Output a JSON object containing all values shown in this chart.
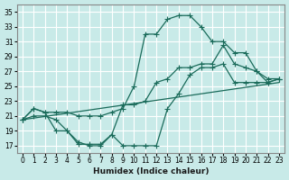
{
  "title": "",
  "xlabel": "Humidex (Indice chaleur)",
  "ylabel": "",
  "bg_color": "#c8eae8",
  "grid_color": "#ffffff",
  "line_color": "#1a6b5a",
  "xlim": [
    -0.5,
    23.5
  ],
  "ylim": [
    16,
    36
  ],
  "xticks": [
    0,
    1,
    2,
    3,
    4,
    5,
    6,
    7,
    8,
    9,
    10,
    11,
    12,
    13,
    14,
    15,
    16,
    17,
    18,
    19,
    20,
    21,
    22,
    23
  ],
  "yticks": [
    17,
    19,
    21,
    23,
    25,
    27,
    29,
    31,
    33,
    35
  ],
  "line1_x": [
    0,
    1,
    2,
    3,
    4,
    5,
    6,
    7,
    8,
    9,
    10,
    11,
    12,
    13,
    14,
    15,
    16,
    17,
    18,
    19,
    20,
    21,
    22,
    23
  ],
  "line1_y": [
    20.5,
    22.0,
    21.5,
    21.5,
    21.5,
    21.0,
    21.0,
    21.0,
    21.5,
    22.0,
    25.0,
    32.0,
    32.0,
    34.0,
    34.5,
    34.5,
    33.0,
    31.0,
    31.0,
    29.5,
    29.5,
    27.0,
    26.0,
    26.0
  ],
  "line2_x": [
    0,
    1,
    2,
    3,
    4,
    5,
    6,
    7,
    8,
    9,
    10,
    11,
    12,
    13,
    14,
    15,
    16,
    17,
    18,
    19,
    20,
    21,
    22,
    23
  ],
  "line2_y": [
    20.5,
    22.0,
    21.5,
    19.0,
    19.0,
    17.5,
    17.0,
    17.0,
    18.5,
    22.5,
    22.5,
    23.0,
    25.5,
    26.0,
    27.5,
    27.5,
    28.0,
    28.0,
    30.5,
    28.0,
    27.5,
    27.0,
    25.5,
    26.0
  ],
  "line3_x": [
    0,
    1,
    2,
    3,
    4,
    5,
    6,
    7,
    8,
    9,
    10,
    11,
    12,
    13,
    14,
    15,
    16,
    17,
    18,
    19,
    20,
    21,
    22,
    23
  ],
  "line3_y": [
    20.5,
    21.0,
    21.0,
    20.5,
    19.0,
    17.2,
    17.2,
    17.2,
    18.5,
    17.0,
    17.0,
    17.0,
    17.0,
    22.0,
    24.0,
    26.5,
    27.5,
    27.5,
    28.0,
    25.5,
    25.5,
    25.5,
    25.5,
    26.0
  ],
  "line4_x": [
    0,
    23
  ],
  "line4_y": [
    20.5,
    25.5
  ]
}
